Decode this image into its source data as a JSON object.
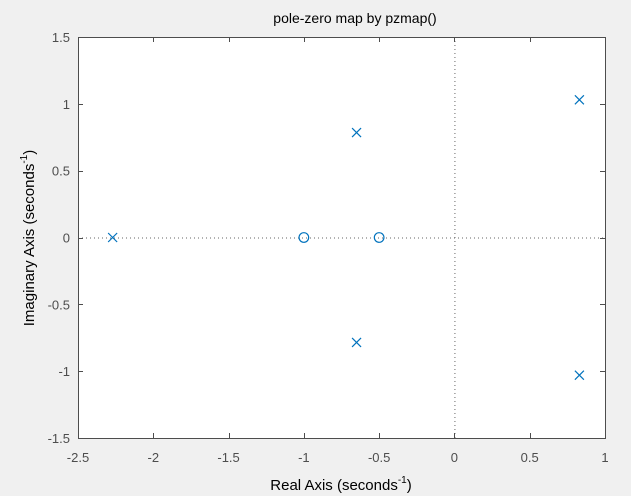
{
  "chart_data": {
    "type": "scatter",
    "title": "pole-zero map by pzmap()",
    "xlabel": "Real Axis (seconds",
    "xlabel_sup": "-1",
    "xlabel_end": ")",
    "ylabel": "Imaginary Axis (seconds",
    "ylabel_sup": "-1",
    "ylabel_end": ")",
    "xlim": [
      -2.5,
      1
    ],
    "ylim": [
      -1.5,
      1.5
    ],
    "xticks": [
      -2.5,
      -2,
      -1.5,
      -1,
      -0.5,
      0,
      0.5,
      1
    ],
    "xtick_labels": [
      "-2.5",
      "-2",
      "-1.5",
      "-1",
      "-0.5",
      "0",
      "0.5",
      "1"
    ],
    "yticks": [
      1.5,
      1,
      0.5,
      0,
      -0.5,
      -1,
      -1.5
    ],
    "ytick_labels": [
      "1.5",
      "1",
      "0.5",
      "0",
      "-0.5",
      "-1",
      "-1.5"
    ],
    "grid": false,
    "reference_lines": {
      "real_axis_dotted": true,
      "imag_axis_dotted": true
    },
    "series": [
      {
        "name": "poles",
        "marker": "x",
        "color": "#0072bd",
        "points": [
          {
            "x": -2.27,
            "y": 0
          },
          {
            "x": -0.65,
            "y": 0.785
          },
          {
            "x": -0.65,
            "y": -0.785
          },
          {
            "x": 0.83,
            "y": 1.03
          },
          {
            "x": 0.83,
            "y": -1.03
          }
        ]
      },
      {
        "name": "zeros",
        "marker": "o",
        "color": "#0072bd",
        "points": [
          {
            "x": -1,
            "y": 0
          },
          {
            "x": -0.5,
            "y": 0
          }
        ]
      }
    ]
  },
  "style": {
    "background": "#f0f0f0",
    "axes_background": "#ffffff",
    "axes_color": "#4d4d4d",
    "marker_color": "#0072bd",
    "refline_color": "#666666"
  }
}
